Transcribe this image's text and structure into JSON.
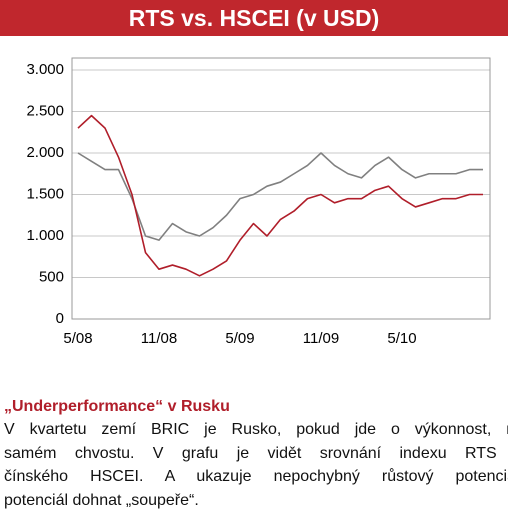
{
  "chart_data": {
    "type": "line",
    "title": "RTS vs. HSCEI (v USD)",
    "categories": [
      "5/08",
      null,
      null,
      null,
      null,
      null,
      "11/08",
      null,
      null,
      null,
      null,
      null,
      "5/09",
      null,
      null,
      null,
      null,
      null,
      "11/09",
      null,
      null,
      null,
      null,
      null,
      "5/10",
      null,
      null,
      null,
      null,
      null,
      null
    ],
    "series": [
      {
        "color": "#808080",
        "values": [
          2000,
          1900,
          1800,
          1800,
          1450,
          1000,
          950,
          1150,
          1050,
          1000,
          1100,
          1250,
          1450,
          1500,
          1600,
          1650,
          1750,
          1850,
          2000,
          1850,
          1750,
          1700,
          1850,
          1950,
          1800,
          1700,
          1750,
          1750,
          1750,
          1800,
          1800
        ]
      },
      {
        "color": "#b01e2a",
        "values": [
          2300,
          2450,
          2300,
          1950,
          1500,
          800,
          600,
          650,
          600,
          520,
          600,
          700,
          950,
          1150,
          1000,
          1200,
          1300,
          1450,
          1500,
          1400,
          1450,
          1450,
          1550,
          1600,
          1450,
          1350,
          1400,
          1450,
          1450,
          1500,
          1500
        ]
      }
    ],
    "ylim": [
      0,
      3000
    ],
    "yticks": [
      0,
      500,
      {
        "value": 1000,
        "label": "1.000"
      },
      {
        "value": 1500,
        "label": "1.500"
      },
      {
        "value": 2000,
        "label": "2.000"
      },
      {
        "value": 2500,
        "label": "2.500"
      },
      {
        "value": 3000,
        "label": "3.000"
      }
    ],
    "grid": true
  },
  "article": {
    "heading": "„Underperformance“ v Rusku",
    "lines": [
      "V kvartetu zemí BRIC je Rusko, pokud jde o výkonnost, na",
      "samém chvostu. V grafu je vidět srovnání indexu RTS a",
      "čínského HSCEI. A ukazuje nepochybný růstový potenciál,",
      "potenciál dohnat „soupeře“."
    ]
  }
}
